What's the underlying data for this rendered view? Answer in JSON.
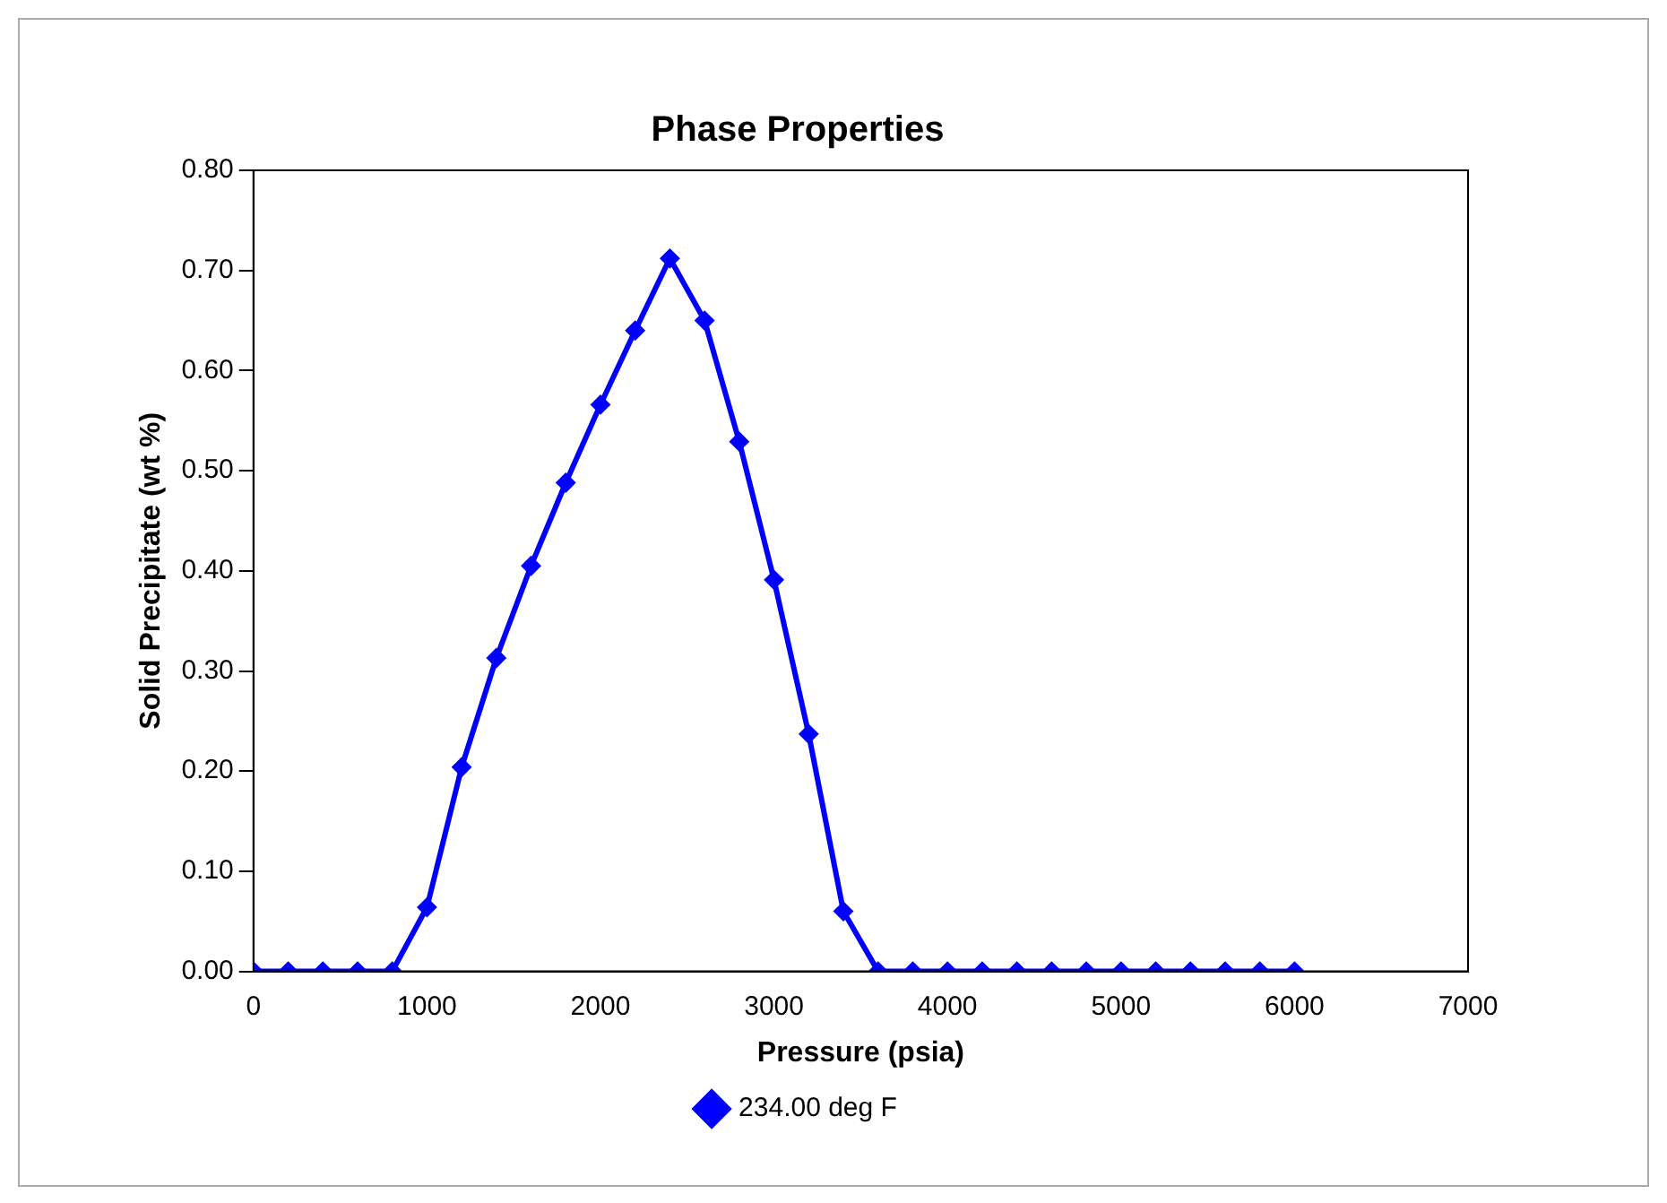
{
  "chart_data": {
    "type": "line",
    "title": "Phase Properties",
    "xlabel": "Pressure (psia)",
    "ylabel": "Solid Precipitate (wt %)",
    "x": [
      0,
      200,
      400,
      600,
      800,
      1000,
      1200,
      1400,
      1600,
      1800,
      2000,
      2200,
      2400,
      2600,
      2800,
      3000,
      3200,
      3400,
      3600,
      3800,
      4000,
      4200,
      4400,
      4600,
      4800,
      5000,
      5200,
      5400,
      5600,
      5800,
      6000
    ],
    "series": [
      {
        "name": "234.00 deg F",
        "color": "#0000ff",
        "values": [
          0,
          0,
          0,
          0,
          0,
          0.064,
          0.204,
          0.313,
          0.405,
          0.488,
          0.566,
          0.64,
          0.712,
          0.65,
          0.529,
          0.391,
          0.237,
          0.06,
          0,
          0,
          0,
          0,
          0,
          0,
          0,
          0,
          0,
          0,
          0,
          0,
          0
        ]
      }
    ],
    "xlim": [
      0,
      7000
    ],
    "xticks": [
      0,
      1000,
      2000,
      3000,
      4000,
      5000,
      6000,
      7000
    ],
    "ylim": [
      0,
      0.8
    ],
    "yticks": [
      {
        "value": 0,
        "label": "0.00"
      },
      {
        "value": 0.1,
        "label": "0.10"
      },
      {
        "value": 0.2,
        "label": "0.20"
      },
      {
        "value": 0.3,
        "label": "0.30"
      },
      {
        "value": 0.4,
        "label": "0.40"
      },
      {
        "value": 0.5,
        "label": "0.50"
      },
      {
        "value": 0.6,
        "label": "0.60"
      },
      {
        "value": 0.7,
        "label": "0.70"
      },
      {
        "value": 0.8,
        "label": "0.80"
      }
    ],
    "grid": false,
    "legend": "bottom",
    "marker": "diamond",
    "line_style": "solid"
  }
}
